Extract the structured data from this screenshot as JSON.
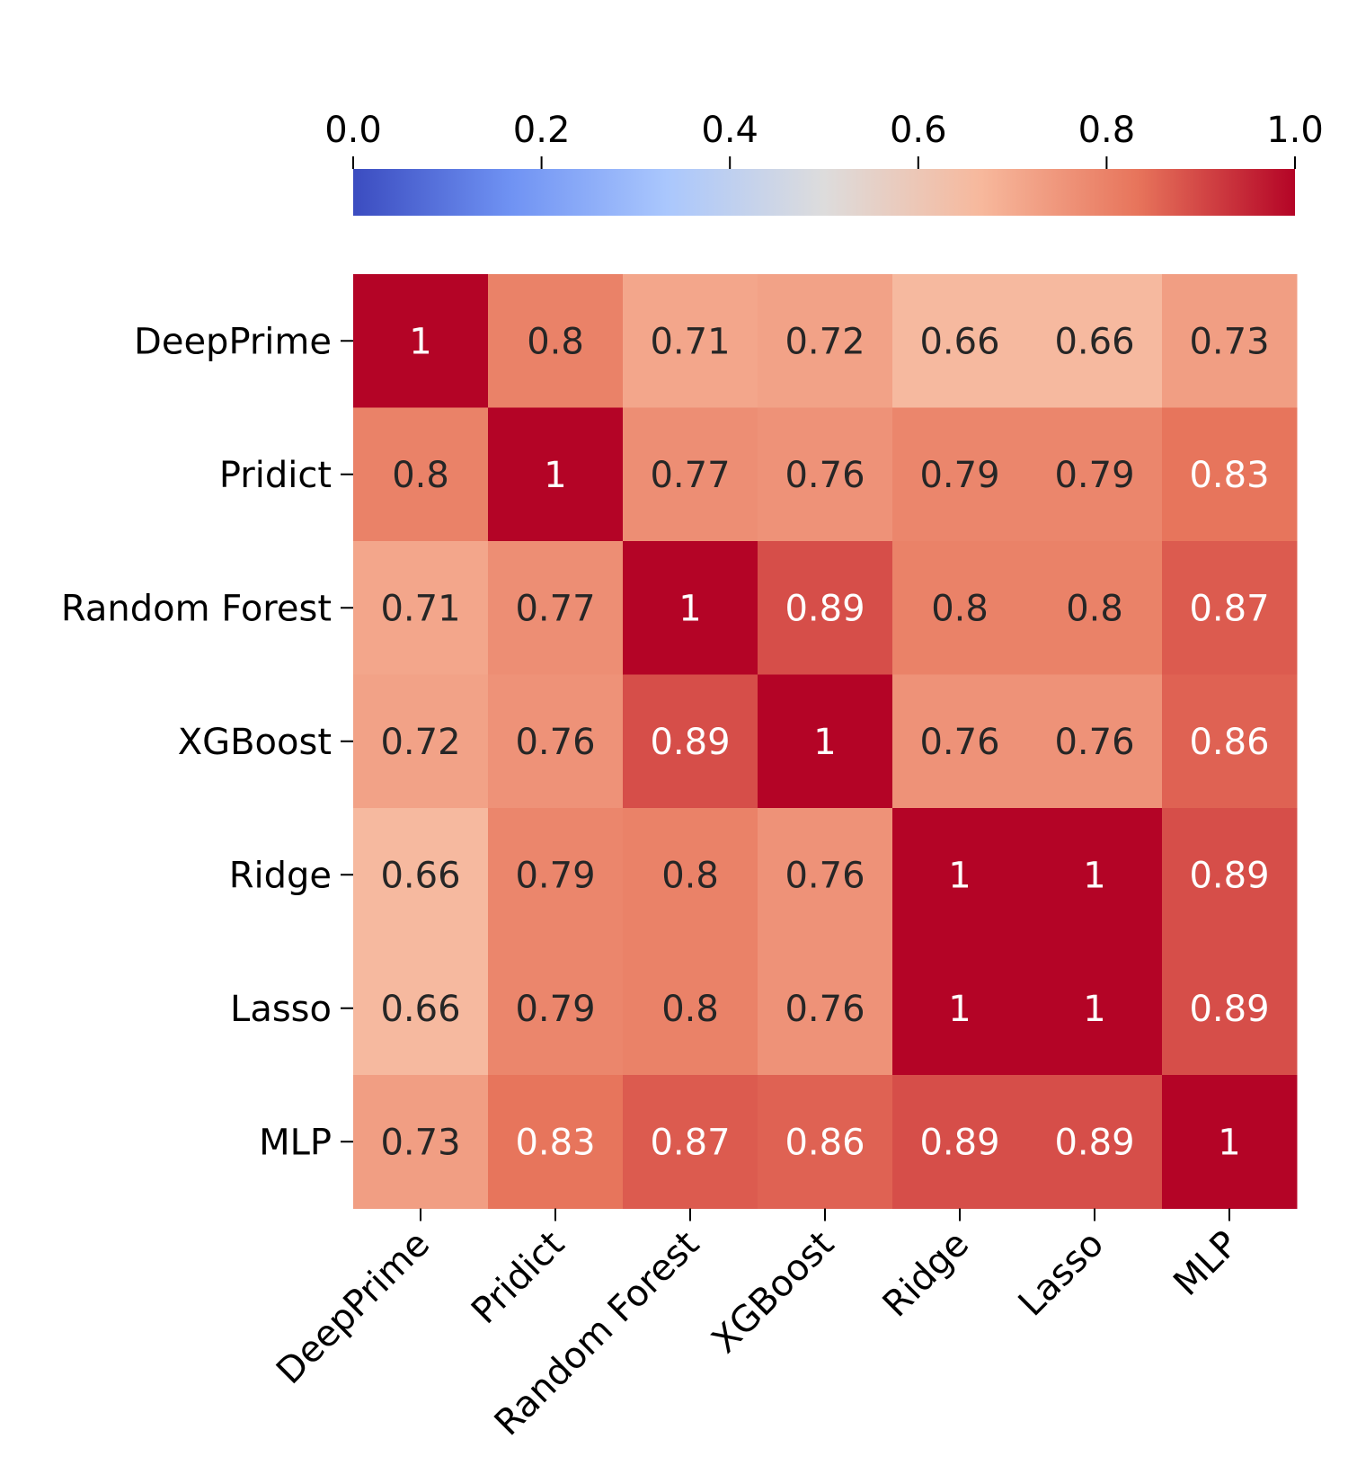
{
  "chart_data": {
    "type": "heatmap",
    "title": "",
    "xlabel": "",
    "ylabel": "",
    "row_labels": [
      "DeepPrime",
      "Pridict",
      "Random Forest",
      "XGBoost",
      "Ridge",
      "Lasso",
      "MLP"
    ],
    "col_labels": [
      "DeepPrime",
      "Pridict",
      "Random Forest",
      "XGBoost",
      "Ridge",
      "Lasso",
      "MLP"
    ],
    "values": [
      [
        1,
        0.8,
        0.71,
        0.72,
        0.66,
        0.66,
        0.73
      ],
      [
        0.8,
        1,
        0.77,
        0.76,
        0.79,
        0.79,
        0.83
      ],
      [
        0.71,
        0.77,
        1,
        0.89,
        0.8,
        0.8,
        0.87
      ],
      [
        0.72,
        0.76,
        0.89,
        1,
        0.76,
        0.76,
        0.86
      ],
      [
        0.66,
        0.79,
        0.8,
        0.76,
        1,
        1,
        0.89
      ],
      [
        0.66,
        0.79,
        0.8,
        0.76,
        1,
        1,
        0.89
      ],
      [
        0.73,
        0.83,
        0.87,
        0.86,
        0.89,
        0.89,
        1
      ]
    ],
    "colorbar": {
      "orientation": "horizontal",
      "position": "top",
      "vmin": 0.0,
      "vmax": 1.0,
      "tick_values": [
        0.0,
        0.2,
        0.4,
        0.6,
        0.8,
        1.0
      ],
      "tick_labels": [
        "0.0",
        "0.2",
        "0.4",
        "0.6",
        "0.8",
        "1.0"
      ]
    },
    "colormap": "coolwarm",
    "colormap_stops": [
      "#3b4cc0",
      "#6f92f3",
      "#aac7fd",
      "#dddcdc",
      "#f7b89c",
      "#e7745b",
      "#b40426"
    ],
    "annotation_colors": {
      "light": "#ffffff",
      "dark": "#262626"
    },
    "grid": false
  }
}
